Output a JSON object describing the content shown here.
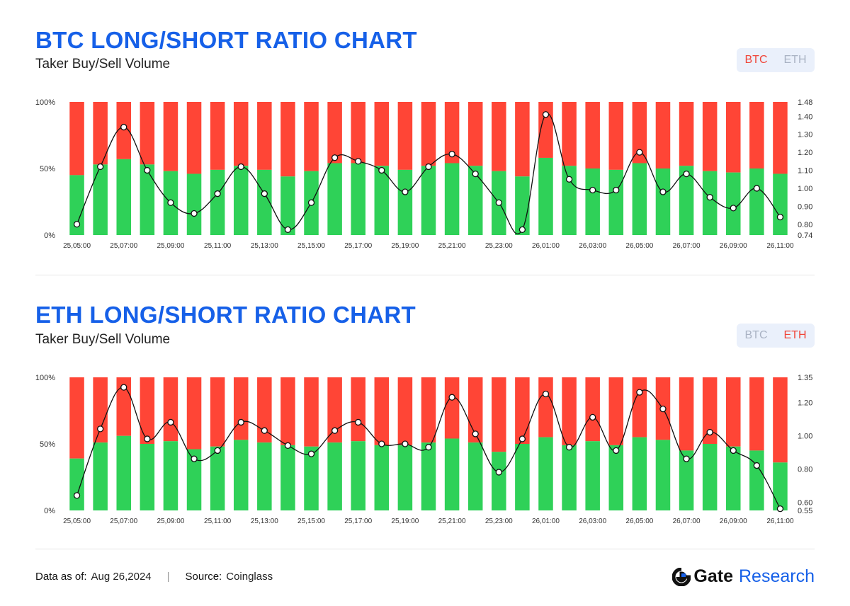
{
  "charts": [
    {
      "title": "BTC LONG/SHORT RATIO CHART",
      "subtitle": "Taker Buy/Sell Volume",
      "toggle": {
        "btc": "BTC",
        "eth": "ETH",
        "active": "BTC"
      }
    },
    {
      "title": "ETH LONG/SHORT RATIO CHART",
      "subtitle": "Taker Buy/Sell Volume",
      "toggle": {
        "btc": "BTC",
        "eth": "ETH",
        "active": "ETH"
      }
    }
  ],
  "footer": {
    "data_label": "Data as of:",
    "data_value": "Aug 26,2024",
    "source_label": "Source:",
    "source_value": "Coinglass",
    "brand_gate": "Gate",
    "brand_research": "Research"
  },
  "colors": {
    "buy": "#2fd158",
    "sell": "#ff4536",
    "title": "#1660e8",
    "line": "#111111"
  },
  "chart_data": [
    {
      "type": "bar",
      "stacked": true,
      "x_labels": [
        "25,05:00",
        "25,07:00",
        "25,09:00",
        "25,11:00",
        "25,13:00",
        "25,15:00",
        "25,17:00",
        "25,19:00",
        "25,21:00",
        "25,23:00",
        "26,01:00",
        "26,03:00",
        "26,05:00",
        "26,07:00",
        "26,09:00",
        "26,11:00"
      ],
      "bar_count": 31,
      "buy_pct": [
        45,
        53,
        57,
        53,
        48,
        46,
        49,
        52,
        49,
        44,
        48,
        54,
        54,
        52,
        49,
        52,
        54,
        52,
        48,
        44,
        58,
        52,
        50,
        49,
        54,
        50,
        52,
        48,
        47,
        50,
        46
      ],
      "ratio": [
        0.8,
        1.12,
        1.34,
        1.1,
        0.92,
        0.86,
        0.97,
        1.12,
        0.97,
        0.77,
        0.92,
        1.17,
        1.15,
        1.1,
        0.98,
        1.12,
        1.19,
        1.08,
        0.92,
        0.77,
        1.41,
        1.05,
        0.99,
        0.99,
        1.2,
        0.98,
        1.08,
        0.95,
        0.89,
        1.0,
        0.84
      ],
      "left_axis": {
        "ticks": [
          "0%",
          "50%",
          "100%"
        ],
        "range": [
          0,
          100
        ]
      },
      "right_axis": {
        "ticks": [
          "0.74",
          "0.80",
          "0.90",
          "1.00",
          "1.10",
          "1.20",
          "1.30",
          "1.40",
          "1.48"
        ],
        "range": [
          0.74,
          1.48
        ]
      },
      "series": [
        {
          "name": "Buy",
          "color": "#2fd158"
        },
        {
          "name": "Sell",
          "color": "#ff4536"
        },
        {
          "name": "Ratio",
          "color": "#111111"
        }
      ]
    },
    {
      "type": "bar",
      "stacked": true,
      "x_labels": [
        "25,05:00",
        "25,07:00",
        "25,09:00",
        "25,11:00",
        "25,13:00",
        "25,15:00",
        "25,17:00",
        "25,19:00",
        "25,21:00",
        "25,23:00",
        "26,01:00",
        "26,03:00",
        "26,05:00",
        "26,07:00",
        "26,09:00",
        "26,11:00"
      ],
      "bar_count": 31,
      "buy_pct": [
        39,
        51,
        56,
        50,
        52,
        46,
        48,
        53,
        51,
        49,
        48,
        51,
        52,
        49,
        49,
        51,
        54,
        51,
        44,
        50,
        55,
        49,
        52,
        49,
        55,
        53,
        45,
        50,
        48,
        45,
        36
      ],
      "ratio": [
        0.64,
        1.04,
        1.29,
        0.98,
        1.08,
        0.86,
        0.91,
        1.08,
        1.03,
        0.94,
        0.89,
        1.03,
        1.08,
        0.95,
        0.95,
        0.93,
        1.23,
        1.01,
        0.78,
        0.98,
        1.25,
        0.93,
        1.11,
        0.91,
        1.26,
        1.16,
        0.86,
        1.02,
        0.91,
        0.82,
        0.56
      ],
      "left_axis": {
        "ticks": [
          "0%",
          "50%",
          "100%"
        ],
        "range": [
          0,
          100
        ]
      },
      "right_axis": {
        "ticks": [
          "0.55",
          "0.60",
          "0.80",
          "1.00",
          "1.20",
          "1.35"
        ],
        "range": [
          0.55,
          1.35
        ]
      },
      "series": [
        {
          "name": "Buy",
          "color": "#2fd158"
        },
        {
          "name": "Sell",
          "color": "#ff4536"
        },
        {
          "name": "Ratio",
          "color": "#111111"
        }
      ]
    }
  ]
}
